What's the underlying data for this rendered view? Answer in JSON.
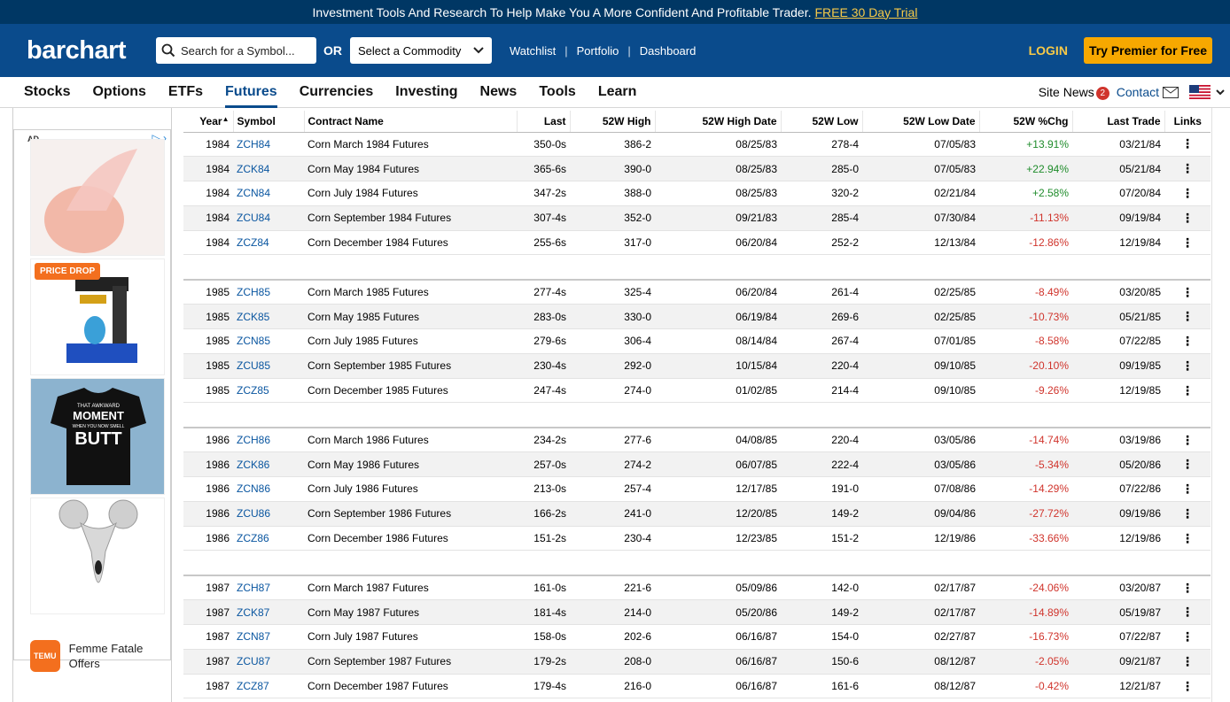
{
  "promo": {
    "text": "Investment Tools And Research To Help Make You A More Confident And Profitable Trader.",
    "link": "FREE 30 Day Trial"
  },
  "header": {
    "logo": "barchart",
    "search_placeholder": "Search for a Symbol...",
    "or": "OR",
    "commodity_select": "Select a Commodity",
    "links": [
      "Watchlist",
      "Portfolio",
      "Dashboard"
    ],
    "login": "LOGIN",
    "premier": "Try Premier for Free"
  },
  "nav": {
    "items": [
      "Stocks",
      "Options",
      "ETFs",
      "Futures",
      "Currencies",
      "Investing",
      "News",
      "Tools",
      "Learn"
    ],
    "active": "Futures",
    "site_news": "Site News",
    "site_news_count": "2",
    "contact": "Contact"
  },
  "ad": {
    "label": "AD",
    "price_drop": "PRICE DROP",
    "shirt_text": [
      "THAT AWKWARD",
      "MOMENT",
      "WHEN YOU NOW SMELL",
      "BUTT"
    ],
    "temu_logo": "TEMU",
    "temu_text": "Femme Fatale Offers"
  },
  "table": {
    "headers": [
      "Year",
      "Symbol",
      "Contract Name",
      "Last",
      "52W High",
      "52W High Date",
      "52W Low",
      "52W Low Date",
      "52W %Chg",
      "Last Trade",
      "Links"
    ],
    "groups": [
      [
        [
          "1984",
          "ZCH84",
          "Corn March 1984 Futures",
          "350-0s",
          "386-2",
          "08/25/83",
          "278-4",
          "07/05/83",
          "+13.91%",
          "03/21/84"
        ],
        [
          "1984",
          "ZCK84",
          "Corn May 1984 Futures",
          "365-6s",
          "390-0",
          "08/25/83",
          "285-0",
          "07/05/83",
          "+22.94%",
          "05/21/84"
        ],
        [
          "1984",
          "ZCN84",
          "Corn July 1984 Futures",
          "347-2s",
          "388-0",
          "08/25/83",
          "320-2",
          "02/21/84",
          "+2.58%",
          "07/20/84"
        ],
        [
          "1984",
          "ZCU84",
          "Corn September 1984 Futures",
          "307-4s",
          "352-0",
          "09/21/83",
          "285-4",
          "07/30/84",
          "-11.13%",
          "09/19/84"
        ],
        [
          "1984",
          "ZCZ84",
          "Corn December 1984 Futures",
          "255-6s",
          "317-0",
          "06/20/84",
          "252-2",
          "12/13/84",
          "-12.86%",
          "12/19/84"
        ]
      ],
      [
        [
          "1985",
          "ZCH85",
          "Corn March 1985 Futures",
          "277-4s",
          "325-4",
          "06/20/84",
          "261-4",
          "02/25/85",
          "-8.49%",
          "03/20/85"
        ],
        [
          "1985",
          "ZCK85",
          "Corn May 1985 Futures",
          "283-0s",
          "330-0",
          "06/19/84",
          "269-6",
          "02/25/85",
          "-10.73%",
          "05/21/85"
        ],
        [
          "1985",
          "ZCN85",
          "Corn July 1985 Futures",
          "279-6s",
          "306-4",
          "08/14/84",
          "267-4",
          "07/01/85",
          "-8.58%",
          "07/22/85"
        ],
        [
          "1985",
          "ZCU85",
          "Corn September 1985 Futures",
          "230-4s",
          "292-0",
          "10/15/84",
          "220-4",
          "09/10/85",
          "-20.10%",
          "09/19/85"
        ],
        [
          "1985",
          "ZCZ85",
          "Corn December 1985 Futures",
          "247-4s",
          "274-0",
          "01/02/85",
          "214-4",
          "09/10/85",
          "-9.26%",
          "12/19/85"
        ]
      ],
      [
        [
          "1986",
          "ZCH86",
          "Corn March 1986 Futures",
          "234-2s",
          "277-6",
          "04/08/85",
          "220-4",
          "03/05/86",
          "-14.74%",
          "03/19/86"
        ],
        [
          "1986",
          "ZCK86",
          "Corn May 1986 Futures",
          "257-0s",
          "274-2",
          "06/07/85",
          "222-4",
          "03/05/86",
          "-5.34%",
          "05/20/86"
        ],
        [
          "1986",
          "ZCN86",
          "Corn July 1986 Futures",
          "213-0s",
          "257-4",
          "12/17/85",
          "191-0",
          "07/08/86",
          "-14.29%",
          "07/22/86"
        ],
        [
          "1986",
          "ZCU86",
          "Corn September 1986 Futures",
          "166-2s",
          "241-0",
          "12/20/85",
          "149-2",
          "09/04/86",
          "-27.72%",
          "09/19/86"
        ],
        [
          "1986",
          "ZCZ86",
          "Corn December 1986 Futures",
          "151-2s",
          "230-4",
          "12/23/85",
          "151-2",
          "12/19/86",
          "-33.66%",
          "12/19/86"
        ]
      ],
      [
        [
          "1987",
          "ZCH87",
          "Corn March 1987 Futures",
          "161-0s",
          "221-6",
          "05/09/86",
          "142-0",
          "02/17/87",
          "-24.06%",
          "03/20/87"
        ],
        [
          "1987",
          "ZCK87",
          "Corn May 1987 Futures",
          "181-4s",
          "214-0",
          "05/20/86",
          "149-2",
          "02/17/87",
          "-14.89%",
          "05/19/87"
        ],
        [
          "1987",
          "ZCN87",
          "Corn July 1987 Futures",
          "158-0s",
          "202-6",
          "06/16/87",
          "154-0",
          "02/27/87",
          "-16.73%",
          "07/22/87"
        ],
        [
          "1987",
          "ZCU87",
          "Corn September 1987 Futures",
          "179-2s",
          "208-0",
          "06/16/87",
          "150-6",
          "08/12/87",
          "-2.05%",
          "09/21/87"
        ],
        [
          "1987",
          "ZCZ87",
          "Corn December 1987 Futures",
          "179-4s",
          "216-0",
          "06/16/87",
          "161-6",
          "08/12/87",
          "-0.42%",
          "12/21/87"
        ]
      ]
    ]
  }
}
